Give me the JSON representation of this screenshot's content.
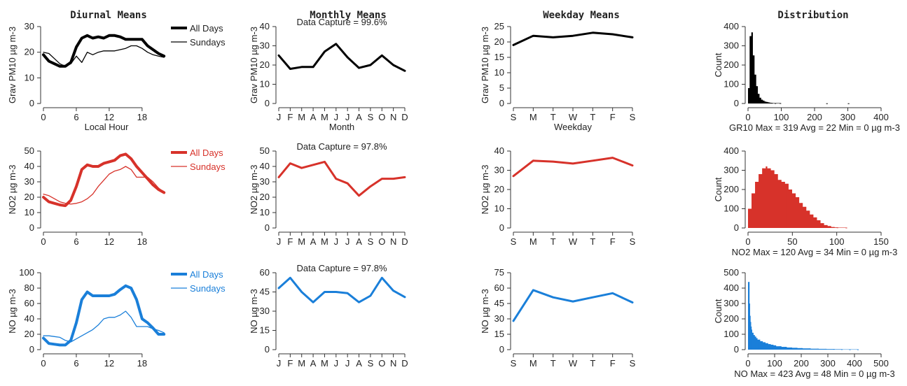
{
  "column_titles": [
    "Diurnal Means",
    "Monthly Means",
    "Weekday Means",
    "Distribution"
  ],
  "colors": {
    "row1": "#000000",
    "row2": "#d7322a",
    "row3": "#1a7fd9"
  },
  "legend_labels": [
    "All Days",
    "Sundays"
  ],
  "chart_data": [
    {
      "type": "line",
      "row": 0,
      "col": 0,
      "title": "Diurnal Means",
      "xlabel": "Local Hour",
      "ylabel": "Grav PM10 µg m-3",
      "ylim": [
        0,
        30
      ],
      "yticks": [
        0,
        10,
        20,
        30
      ],
      "xlim": [
        0,
        23
      ],
      "xticks": [
        0,
        6,
        12,
        18
      ],
      "x": [
        0,
        1,
        2,
        3,
        4,
        5,
        6,
        7,
        8,
        9,
        10,
        11,
        12,
        13,
        14,
        15,
        16,
        17,
        18,
        19,
        20,
        21,
        22
      ],
      "series": [
        {
          "name": "All Days",
          "width": 4,
          "values": [
            19,
            16.5,
            15.5,
            14.5,
            14.5,
            16,
            22,
            25.5,
            26.5,
            25.5,
            26,
            25.5,
            26.5,
            26.5,
            26,
            25,
            25,
            25,
            25,
            22.5,
            21,
            19.5,
            18.5
          ]
        },
        {
          "name": "Sundays",
          "width": 1.3,
          "values": [
            20,
            19.5,
            17.5,
            15.5,
            14.5,
            15.5,
            18.5,
            16,
            20,
            19,
            20,
            20.5,
            20.5,
            20.5,
            21,
            21.5,
            22.5,
            22.5,
            21.5,
            20,
            19,
            18.5,
            18
          ]
        }
      ],
      "legend": "top-right"
    },
    {
      "type": "line",
      "row": 0,
      "col": 1,
      "title": "Monthly Means",
      "xlabel": "Month",
      "ylabel": "Grav PM10 µg m-3",
      "note": "Data Capture = 99.6%",
      "ylim": [
        0,
        40
      ],
      "yticks": [
        0,
        10,
        20,
        30,
        40
      ],
      "categories": [
        "J",
        "F",
        "M",
        "A",
        "M",
        "J",
        "J",
        "A",
        "S",
        "O",
        "N",
        "D"
      ],
      "series": [
        {
          "width": 3,
          "values": [
            25,
            18,
            19,
            19,
            27,
            31,
            24,
            18.5,
            20,
            25,
            20,
            17
          ]
        }
      ]
    },
    {
      "type": "line",
      "row": 0,
      "col": 2,
      "title": "Weekday Means",
      "xlabel": "Weekday",
      "ylabel": "Grav PM10 µg m-3",
      "ylim": [
        0,
        25
      ],
      "yticks": [
        0,
        5,
        10,
        15,
        20,
        25
      ],
      "categories": [
        "S",
        "M",
        "T",
        "W",
        "T",
        "F",
        "S"
      ],
      "series": [
        {
          "width": 3,
          "values": [
            19,
            22,
            21.5,
            22,
            23,
            22.5,
            21.5
          ]
        }
      ]
    },
    {
      "type": "histogram",
      "row": 0,
      "col": 3,
      "title": "Distribution",
      "ylabel": "Count",
      "stat": "GR10 Max = 319 Avg = 22 Min = 0 µg m-3",
      "xlim": [
        0,
        400
      ],
      "xticks": [
        0,
        100,
        200,
        300,
        400
      ],
      "ylim": [
        0,
        400
      ],
      "yticks": [
        0,
        100,
        200,
        300,
        400
      ],
      "bin_x": [
        0,
        5,
        10,
        15,
        20,
        25,
        30,
        35,
        40,
        45,
        50,
        55,
        60,
        65,
        70,
        80,
        95,
        235,
        300
      ],
      "bin_counts": [
        80,
        350,
        370,
        250,
        150,
        90,
        50,
        30,
        20,
        15,
        10,
        8,
        6,
        4,
        3,
        2,
        2,
        1,
        1
      ]
    },
    {
      "type": "line",
      "row": 1,
      "col": 0,
      "xlabel": "",
      "ylabel": "NO2 µg m-3",
      "ylim": [
        0,
        50
      ],
      "yticks": [
        0,
        10,
        20,
        30,
        40,
        50
      ],
      "xlim": [
        0,
        23
      ],
      "xticks": [
        0,
        6,
        12,
        18
      ],
      "x": [
        0,
        1,
        2,
        3,
        4,
        5,
        6,
        7,
        8,
        9,
        10,
        11,
        12,
        13,
        14,
        15,
        16,
        17,
        18,
        19,
        20,
        21,
        22
      ],
      "series": [
        {
          "name": "All Days",
          "width": 4,
          "values": [
            20,
            17,
            16,
            15,
            14.5,
            18,
            27,
            38,
            41,
            40,
            40,
            42,
            43,
            44,
            47,
            48,
            45,
            40,
            36,
            32,
            28,
            25,
            23
          ]
        },
        {
          "name": "Sundays",
          "width": 1.3,
          "values": [
            22,
            21,
            19,
            17,
            16,
            15.5,
            16,
            17,
            19,
            22,
            27,
            31,
            35,
            37,
            38,
            40,
            38,
            33,
            33,
            33,
            30,
            26,
            23
          ]
        }
      ],
      "legend": "top-right"
    },
    {
      "type": "line",
      "row": 1,
      "col": 1,
      "xlabel": "",
      "ylabel": "NO2 µg m-3",
      "note": "Data Capture = 97.8%",
      "ylim": [
        0,
        50
      ],
      "yticks": [
        0,
        10,
        20,
        30,
        40,
        50
      ],
      "categories": [
        "J",
        "F",
        "M",
        "A",
        "M",
        "J",
        "J",
        "A",
        "S",
        "O",
        "N",
        "D"
      ],
      "series": [
        {
          "width": 3,
          "values": [
            33,
            42,
            39,
            41,
            43,
            32,
            29,
            21,
            27,
            32,
            32,
            33
          ]
        }
      ]
    },
    {
      "type": "line",
      "row": 1,
      "col": 2,
      "xlabel": "",
      "ylabel": "NO2 µg m-3",
      "ylim": [
        0,
        40
      ],
      "yticks": [
        0,
        10,
        20,
        30,
        40
      ],
      "categories": [
        "S",
        "M",
        "T",
        "W",
        "T",
        "F",
        "S"
      ],
      "series": [
        {
          "width": 3,
          "values": [
            27,
            35,
            34.5,
            33.5,
            35,
            36.5,
            32.5
          ]
        }
      ]
    },
    {
      "type": "histogram",
      "row": 1,
      "col": 3,
      "ylabel": "Count",
      "stat": "NO2 Max = 120 Avg = 34 Min = 0 µg m-3",
      "xlim": [
        0,
        150
      ],
      "xticks": [
        0,
        50,
        100,
        150
      ],
      "ylim": [
        0,
        400
      ],
      "yticks": [
        0,
        100,
        200,
        300,
        400
      ],
      "bin_x": [
        0,
        4,
        8,
        12,
        16,
        20,
        24,
        28,
        32,
        36,
        40,
        44,
        48,
        52,
        56,
        60,
        64,
        68,
        72,
        76,
        80,
        84,
        88,
        92,
        96,
        100,
        110
      ],
      "bin_counts": [
        100,
        180,
        240,
        280,
        310,
        320,
        310,
        300,
        280,
        250,
        240,
        230,
        200,
        180,
        160,
        130,
        110,
        90,
        70,
        55,
        40,
        25,
        15,
        10,
        5,
        3,
        2
      ]
    },
    {
      "type": "line",
      "row": 2,
      "col": 0,
      "xlabel": "",
      "ylabel": "NO µg m-3",
      "ylim": [
        0,
        100
      ],
      "yticks": [
        0,
        20,
        40,
        60,
        80,
        100
      ],
      "xlim": [
        0,
        23
      ],
      "xticks": [
        0,
        6,
        12,
        18
      ],
      "x": [
        0,
        1,
        2,
        3,
        4,
        5,
        6,
        7,
        8,
        9,
        10,
        11,
        12,
        13,
        14,
        15,
        16,
        17,
        18,
        19,
        20,
        21,
        22
      ],
      "series": [
        {
          "name": "All Days",
          "width": 4,
          "values": [
            15,
            8,
            7,
            6,
            6,
            12,
            35,
            65,
            75,
            70,
            70,
            70,
            70,
            72,
            78,
            83,
            80,
            65,
            40,
            35,
            28,
            20,
            20
          ]
        },
        {
          "name": "Sundays",
          "width": 1.3,
          "values": [
            18,
            18,
            17,
            16,
            12,
            10,
            14,
            18,
            22,
            26,
            32,
            40,
            42,
            42,
            45,
            50,
            42,
            30,
            30,
            30,
            27,
            25,
            22
          ]
        }
      ],
      "legend": "top-right"
    },
    {
      "type": "line",
      "row": 2,
      "col": 1,
      "xlabel": "",
      "ylabel": "NO µg m-3",
      "note": "Data Capture = 97.8%",
      "ylim": [
        0,
        60
      ],
      "yticks": [
        0,
        15,
        30,
        45,
        60
      ],
      "categories": [
        "J",
        "F",
        "M",
        "A",
        "M",
        "J",
        "J",
        "A",
        "S",
        "O",
        "N",
        "D"
      ],
      "series": [
        {
          "width": 3,
          "values": [
            48,
            56,
            45,
            37,
            45,
            45,
            44,
            37,
            42,
            56,
            46,
            41
          ]
        }
      ]
    },
    {
      "type": "line",
      "row": 2,
      "col": 2,
      "xlabel": "",
      "ylabel": "NO µg m-3",
      "ylim": [
        0,
        75
      ],
      "yticks": [
        0,
        15,
        30,
        45,
        60,
        75
      ],
      "categories": [
        "S",
        "M",
        "T",
        "W",
        "T",
        "F",
        "S"
      ],
      "series": [
        {
          "width": 3,
          "values": [
            28,
            58,
            51,
            47,
            51,
            55,
            46
          ]
        }
      ]
    },
    {
      "type": "histogram",
      "row": 2,
      "col": 3,
      "ylabel": "Count",
      "stat": "NO Max = 423 Avg = 48 Min = 0 µg m-3",
      "xlim": [
        0,
        500
      ],
      "xticks": [
        0,
        100,
        200,
        300,
        400,
        500
      ],
      "ylim": [
        0,
        500
      ],
      "yticks": [
        0,
        100,
        200,
        300,
        400,
        500
      ],
      "bin_x": [
        0,
        2,
        4,
        6,
        8,
        10,
        15,
        20,
        25,
        30,
        40,
        50,
        60,
        70,
        80,
        90,
        100,
        120,
        140,
        160,
        180,
        200,
        230,
        260,
        290,
        320,
        350,
        380,
        410
      ],
      "bin_counts": [
        440,
        300,
        220,
        180,
        150,
        130,
        110,
        95,
        85,
        75,
        65,
        55,
        48,
        42,
        36,
        32,
        28,
        22,
        18,
        14,
        12,
        10,
        8,
        6,
        5,
        4,
        3,
        2,
        2
      ]
    }
  ]
}
